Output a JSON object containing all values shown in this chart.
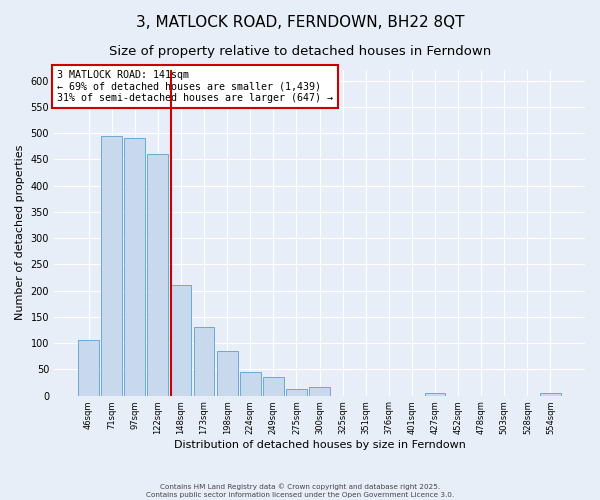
{
  "title": "3, MATLOCK ROAD, FERNDOWN, BH22 8QT",
  "subtitle": "Size of property relative to detached houses in Ferndown",
  "xlabel": "Distribution of detached houses by size in Ferndown",
  "ylabel": "Number of detached properties",
  "footer_line1": "Contains HM Land Registry data © Crown copyright and database right 2025.",
  "footer_line2": "Contains public sector information licensed under the Open Government Licence 3.0.",
  "bins": [
    "46sqm",
    "71sqm",
    "97sqm",
    "122sqm",
    "148sqm",
    "173sqm",
    "198sqm",
    "224sqm",
    "249sqm",
    "275sqm",
    "300sqm",
    "325sqm",
    "351sqm",
    "376sqm",
    "401sqm",
    "427sqm",
    "452sqm",
    "478sqm",
    "503sqm",
    "528sqm",
    "554sqm"
  ],
  "values": [
    105,
    495,
    490,
    460,
    210,
    130,
    85,
    45,
    35,
    12,
    17,
    0,
    0,
    0,
    0,
    5,
    0,
    0,
    0,
    0,
    5
  ],
  "bar_color": "#c8d9ee",
  "bar_edge_color": "#6aaad4",
  "vline_bin_index": 4,
  "annotation_line1": "3 MATLOCK ROAD: 141sqm",
  "annotation_line2": "← 69% of detached houses are smaller (1,439)",
  "annotation_line3": "31% of semi-detached houses are larger (647) →",
  "annotation_box_color": "#ffffff",
  "annotation_box_edge": "#cc0000",
  "vline_color": "#cc0000",
  "ylim": [
    0,
    620
  ],
  "yticks": [
    0,
    50,
    100,
    150,
    200,
    250,
    300,
    350,
    400,
    450,
    500,
    550,
    600
  ],
  "background_color": "#e8eef7",
  "plot_bg_color": "#e8eef7",
  "grid_color": "#ffffff",
  "title_fontsize": 11,
  "subtitle_fontsize": 9.5,
  "figwidth": 6.0,
  "figheight": 5.0,
  "dpi": 100
}
